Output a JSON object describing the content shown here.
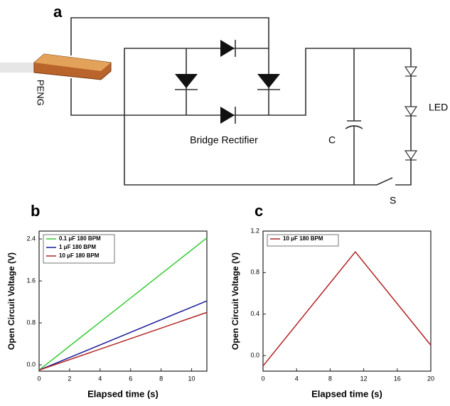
{
  "diagram": {
    "panel": "a",
    "device": "PENG",
    "rectifier": "Bridge Rectifier",
    "capacitor": "C",
    "led": "LED",
    "switch": "S"
  },
  "chart_data": [
    {
      "type": "line",
      "panel": "b",
      "xlabel": "Elapsed time (s)",
      "ylabel": "Open Circuit Voltage (V)",
      "xlim": [
        0,
        11
      ],
      "ylim": [
        -0.12,
        2.55
      ],
      "xticks": [
        0,
        2,
        4,
        6,
        8,
        10
      ],
      "yticks": [
        {
          "value": 0,
          "label": "0.0"
        },
        0.8,
        1.6,
        2.4
      ],
      "series": [
        {
          "name": "0.1 μF 180 BPM",
          "color": "#33cc33",
          "x": [
            0,
            11
          ],
          "values": [
            -0.1,
            2.42
          ]
        },
        {
          "name": "1 μF 180 BPM",
          "color": "#1a1a99",
          "x": [
            0,
            11
          ],
          "values": [
            -0.1,
            1.22
          ]
        },
        {
          "name": "10 μF 180 BPM",
          "color": "#b22222",
          "x": [
            0,
            11
          ],
          "values": [
            -0.1,
            1.0
          ]
        }
      ]
    },
    {
      "type": "line",
      "panel": "c",
      "xlabel": "Elapsed time (s)",
      "ylabel": "Open Circuit Voltage (V)",
      "xlim": [
        0,
        20
      ],
      "ylim": [
        -0.15,
        1.2
      ],
      "xticks": [
        0,
        4,
        8,
        12,
        16,
        20
      ],
      "yticks": [
        {
          "value": 0,
          "label": "0.0"
        },
        0.4,
        0.8,
        1.2
      ],
      "series": [
        {
          "name": "10 μF 180 BPM",
          "color": "#b22222",
          "x": [
            0,
            11,
            20
          ],
          "values": [
            -0.1,
            1.0,
            0.1
          ]
        }
      ]
    }
  ]
}
